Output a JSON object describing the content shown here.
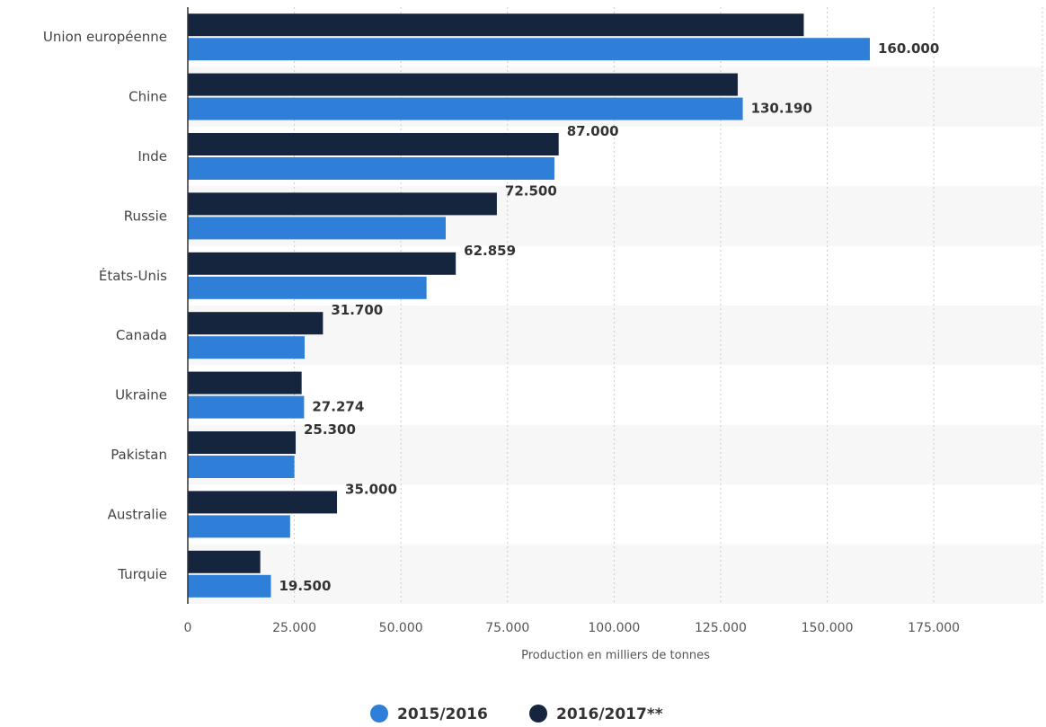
{
  "chart_data": {
    "type": "bar",
    "orientation": "horizontal",
    "title": "",
    "xlabel": "Production en milliers de tonnes",
    "ylabel": "",
    "xlim": [
      0,
      200000
    ],
    "x_ticks": [
      0,
      25000,
      50000,
      75000,
      100000,
      125000,
      150000,
      175000
    ],
    "x_tick_labels": [
      "0",
      "25.000",
      "50.000",
      "75.000",
      "100.000",
      "125.000",
      "150.000",
      "175.000"
    ],
    "grid": true,
    "legend_position": "bottom-center",
    "categories": [
      "Union européenne",
      "Chine",
      "Inde",
      "Russie",
      "États-Unis",
      "Canada",
      "Ukraine",
      "Pakistan",
      "Australie",
      "Turquie"
    ],
    "series": [
      {
        "name": "2016/2017**",
        "color": "#14253d",
        "values": [
          144500,
          129000,
          87000,
          72500,
          62859,
          31700,
          26700,
          25300,
          35000,
          17000
        ],
        "labels": [
          null,
          null,
          "87.000",
          "72.500",
          "62.859",
          "31.700",
          null,
          "25.300",
          "35.000",
          null
        ]
      },
      {
        "name": "2015/2016",
        "color": "#2f7ed8",
        "values": [
          160000,
          130190,
          86000,
          60500,
          56000,
          27400,
          27274,
          25000,
          24000,
          19500
        ],
        "labels": [
          "160.000",
          "130.190",
          null,
          null,
          null,
          null,
          "27.274",
          null,
          null,
          "19.500"
        ]
      }
    ],
    "legend": [
      "2015/2016",
      "2016/2017**"
    ]
  }
}
